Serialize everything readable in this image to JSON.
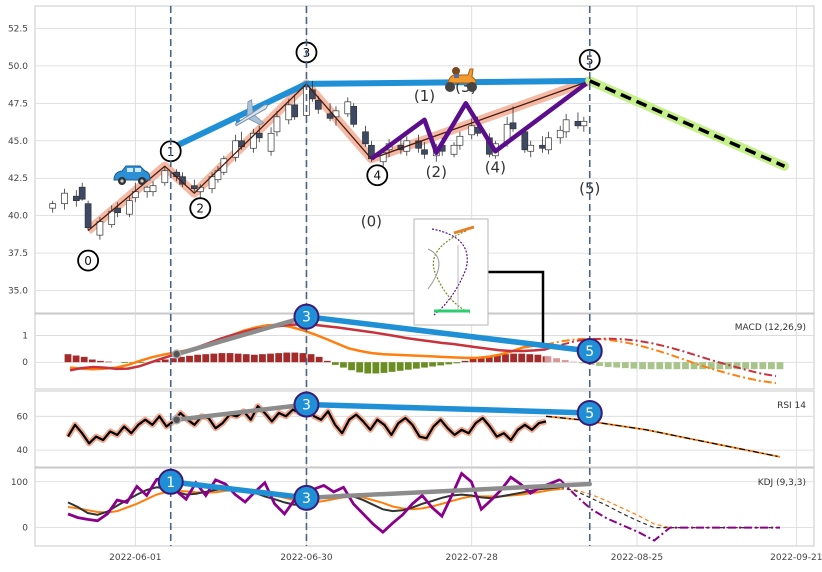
{
  "colors": {
    "panel_border": "#c9c9c9",
    "grid": "#d8d8d8",
    "divergence_blue": "#1f8fd6",
    "trend_gray": "#8c8c8c",
    "wave_salmon": "#f2a98f",
    "wave_purple": "#5b0e8c",
    "projection_green": "#c6f08a",
    "dashed_vline": "#4a6387",
    "macd_line": "#c8323c",
    "signal_line": "#ff7f0e",
    "hist_pos": "#a52a2a",
    "hist_neg": "#6b8e23",
    "rsi_line": "#000000",
    "rsi_glow": "#f2a98f",
    "kdj_k": "#333333",
    "kdj_d": "#ff7f0e",
    "kdj_j": "#8b008b",
    "candle_up": "#ffffff",
    "candle_down": "#3d4a66"
  },
  "icons": [
    "car-icon",
    "airplane-icon",
    "scooter-icon",
    "wave-inset-icon"
  ],
  "chart_data": [
    {
      "type": "candlestick",
      "panel": "price",
      "ylim": [
        33.5,
        54.0
      ],
      "yticks": [
        "35.0",
        "37.5",
        "40.0",
        "42.5",
        "45.0",
        "47.5",
        "50.0",
        "52.5"
      ],
      "xlim": [
        "2022-05-15",
        "2022-09-24"
      ],
      "candles": [
        [
          "2022-05-18",
          40.5,
          41.0,
          40.2,
          40.8
        ],
        [
          "2022-05-20",
          40.8,
          41.8,
          40.4,
          41.5
        ],
        [
          "2022-05-22",
          41.3,
          41.7,
          40.6,
          41.0
        ],
        [
          "2022-05-23",
          41.9,
          42.2,
          41.0,
          41.1
        ],
        [
          "2022-05-24",
          40.8,
          41.0,
          39.0,
          39.2
        ],
        [
          "2022-05-26",
          38.7,
          39.9,
          38.4,
          39.6
        ],
        [
          "2022-05-28",
          39.4,
          40.7,
          39.2,
          40.3
        ],
        [
          "2022-05-29",
          40.5,
          40.9,
          39.9,
          40.2
        ],
        [
          "2022-05-31",
          40.1,
          41.3,
          39.9,
          41.0
        ],
        [
          "2022-06-01",
          41.2,
          42.2,
          40.9,
          41.6
        ],
        [
          "2022-06-03",
          41.6,
          42.0,
          41.2,
          41.9
        ],
        [
          "2022-06-04",
          41.6,
          42.3,
          41.3,
          42.0
        ],
        [
          "2022-06-06",
          42.2,
          43.3,
          42.0,
          43.0
        ],
        [
          "2022-06-08",
          42.9,
          43.1,
          42.3,
          42.6
        ],
        [
          "2022-06-09",
          42.6,
          42.9,
          41.9,
          42.1
        ],
        [
          "2022-06-11",
          42.0,
          42.4,
          41.6,
          41.8
        ],
        [
          "2022-06-12",
          41.6,
          42.1,
          41.2,
          41.9
        ],
        [
          "2022-06-14",
          41.8,
          42.9,
          41.5,
          42.6
        ],
        [
          "2022-06-15",
          42.4,
          43.3,
          42.2,
          43.0
        ],
        [
          "2022-06-16",
          42.9,
          44.0,
          42.7,
          43.8
        ],
        [
          "2022-06-18",
          43.9,
          45.4,
          43.6,
          45.0
        ],
        [
          "2022-06-19",
          45.0,
          45.6,
          44.4,
          44.6
        ],
        [
          "2022-06-21",
          44.5,
          45.8,
          44.2,
          45.5
        ],
        [
          "2022-06-22",
          45.5,
          46.0,
          44.9,
          45.2
        ],
        [
          "2022-06-24",
          44.3,
          45.9,
          44.0,
          45.5
        ],
        [
          "2022-06-25",
          45.6,
          47.0,
          45.3,
          46.6
        ],
        [
          "2022-06-27",
          46.4,
          47.8,
          46.1,
          47.4
        ],
        [
          "2022-06-28",
          47.4,
          48.1,
          46.4,
          46.6
        ],
        [
          "2022-06-30",
          46.7,
          48.9,
          46.5,
          48.6
        ],
        [
          "2022-07-01",
          48.4,
          49.0,
          47.6,
          47.8
        ],
        [
          "2022-07-02",
          47.7,
          48.0,
          46.8,
          47.1
        ],
        [
          "2022-07-04",
          46.8,
          47.5,
          46.3,
          46.5
        ],
        [
          "2022-07-05",
          46.6,
          47.3,
          46.0,
          47.0
        ],
        [
          "2022-07-07",
          46.8,
          47.9,
          46.6,
          47.6
        ],
        [
          "2022-07-08",
          47.3,
          47.5,
          45.9,
          46.1
        ],
        [
          "2022-07-10",
          45.6,
          46.0,
          44.6,
          44.8
        ],
        [
          "2022-07-11",
          44.7,
          45.0,
          43.6,
          43.8
        ],
        [
          "2022-07-13",
          43.6,
          44.4,
          43.3,
          44.2
        ],
        [
          "2022-07-14",
          44.4,
          45.1,
          43.9,
          44.8
        ],
        [
          "2022-07-16",
          44.7,
          45.2,
          44.1,
          44.4
        ],
        [
          "2022-07-17",
          44.3,
          45.3,
          44.0,
          45.0
        ],
        [
          "2022-07-19",
          45.0,
          45.4,
          44.2,
          44.5
        ],
        [
          "2022-07-20",
          44.4,
          44.9,
          43.8,
          44.1
        ],
        [
          "2022-07-22",
          44.0,
          44.8,
          43.6,
          44.6
        ],
        [
          "2022-07-23",
          44.7,
          45.2,
          44.0,
          44.3
        ],
        [
          "2022-07-25",
          44.1,
          44.9,
          43.9,
          44.7
        ],
        [
          "2022-07-26",
          44.7,
          45.6,
          44.4,
          45.3
        ],
        [
          "2022-07-28",
          45.4,
          46.5,
          45.1,
          46.0
        ],
        [
          "2022-07-29",
          45.9,
          46.6,
          45.3,
          45.5
        ],
        [
          "2022-07-31",
          45.2,
          45.5,
          43.9,
          44.1
        ],
        [
          "2022-08-01",
          44.0,
          45.0,
          43.8,
          44.8
        ],
        [
          "2022-08-03",
          44.9,
          46.6,
          44.6,
          46.1
        ],
        [
          "2022-08-04",
          46.2,
          47.3,
          45.6,
          45.8
        ],
        [
          "2022-08-06",
          45.6,
          45.8,
          44.2,
          44.4
        ],
        [
          "2022-08-07",
          44.3,
          45.0,
          43.9,
          44.7
        ],
        [
          "2022-08-09",
          44.7,
          45.3,
          44.2,
          44.5
        ],
        [
          "2022-08-10",
          44.4,
          45.6,
          44.1,
          45.2
        ],
        [
          "2022-08-12",
          45.2,
          46.0,
          44.8,
          45.7
        ],
        [
          "2022-08-13",
          45.6,
          46.8,
          45.2,
          46.4
        ],
        [
          "2022-08-15",
          46.3,
          46.9,
          45.8,
          46.0
        ],
        [
          "2022-08-16",
          46.0,
          46.6,
          45.6,
          46.3
        ]
      ],
      "wave_labels": [
        {
          "label": "0",
          "x": "2022-05-24",
          "y": 37.0,
          "circled": true
        },
        {
          "label": "1",
          "x": "2022-06-07",
          "y": 44.3,
          "circled": true
        },
        {
          "label": "2",
          "x": "2022-06-12",
          "y": 40.5,
          "circled": true
        },
        {
          "label": "3",
          "x": "2022-06-30",
          "y": 50.9,
          "circled": true
        },
        {
          "label": "4",
          "x": "2022-07-12",
          "y": 42.7,
          "circled": true
        },
        {
          "label": "5",
          "x": "2022-08-17",
          "y": 50.4,
          "circled": true
        },
        {
          "label": "(0)",
          "x": "2022-07-11",
          "y": 39.6,
          "circled": false
        },
        {
          "label": "(1)",
          "x": "2022-07-20",
          "y": 48.0,
          "circled": false
        },
        {
          "label": "(2)",
          "x": "2022-07-22",
          "y": 42.9,
          "circled": false
        },
        {
          "label": "(3)",
          "x": "2022-07-27",
          "y": 48.6,
          "circled": false
        },
        {
          "label": "(4)",
          "x": "2022-08-01",
          "y": 43.2,
          "circled": false
        },
        {
          "label": "(5)",
          "x": "2022-08-17",
          "y": 41.8,
          "circled": false
        }
      ],
      "impulse_wave": [
        [
          "2022-05-24",
          39.0
        ],
        [
          "2022-06-06",
          43.3
        ],
        [
          "2022-06-11",
          41.5
        ],
        [
          "2022-06-30",
          48.8
        ],
        [
          "2022-07-11",
          43.8
        ],
        [
          "2022-08-17",
          49.0
        ]
      ],
      "sub_wave": [
        [
          "2022-07-11",
          43.8
        ],
        [
          "2022-07-20",
          46.4
        ],
        [
          "2022-07-22",
          44.2
        ],
        [
          "2022-07-27",
          47.5
        ],
        [
          "2022-08-01",
          44.3
        ],
        [
          "2022-08-17",
          49.0
        ]
      ],
      "trend_lines": [
        {
          "name": "upper-trend-1-3",
          "points": [
            [
              "2022-06-06",
              44.3
            ],
            [
              "2022-06-30",
              48.8
            ]
          ]
        },
        {
          "name": "upper-trend-3-5",
          "points": [
            [
              "2022-06-30",
              48.8
            ],
            [
              "2022-08-17",
              49.0
            ]
          ]
        }
      ],
      "projection": [
        [
          "2022-08-17",
          49.0
        ],
        [
          "2022-09-19",
          43.3
        ]
      ],
      "vlines": [
        "2022-06-07",
        "2022-06-30",
        "2022-08-17"
      ]
    },
    {
      "type": "bar+line",
      "panel": "macd",
      "label": "MACD (12,26,9)",
      "ylim": [
        -1.0,
        1.8
      ],
      "yticks": [
        "0",
        "1"
      ],
      "histogram": [
        0.3,
        0.25,
        0.2,
        0.1,
        0.05,
        0.02,
        0.0,
        -0.03,
        -0.05,
        -0.03,
        0.0,
        0.05,
        0.1,
        0.15,
        0.2,
        0.24,
        0.28,
        0.3,
        0.32,
        0.34,
        0.34,
        0.32,
        0.3,
        0.28,
        0.3,
        0.32,
        0.34,
        0.36,
        0.36,
        0.34,
        0.3,
        0.2,
        0.05,
        -0.1,
        -0.2,
        -0.3,
        -0.38,
        -0.42,
        -0.42,
        -0.4,
        -0.36,
        -0.32,
        -0.28,
        -0.24,
        -0.2,
        -0.16,
        -0.12,
        -0.08,
        -0.04,
        0.05,
        0.12,
        0.18,
        0.24,
        0.28,
        0.3,
        0.32,
        0.32,
        0.3,
        0.28,
        0.22
      ],
      "hist_projection": [
        0.22,
        0.15,
        0.08,
        0.02,
        -0.04,
        -0.1,
        -0.14,
        -0.18,
        -0.2,
        -0.22,
        -0.24,
        -0.26,
        -0.26,
        -0.26,
        -0.26,
        -0.26,
        -0.26,
        -0.26,
        -0.26,
        -0.26,
        -0.26,
        -0.26,
        -0.26,
        -0.26,
        -0.26,
        -0.26,
        -0.26,
        -0.26
      ],
      "macd": [
        -0.3,
        -0.22,
        -0.18,
        -0.2,
        -0.25,
        -0.24,
        -0.15,
        0.0,
        0.15,
        0.28,
        0.42,
        0.56,
        0.72,
        0.88,
        1.02,
        1.14,
        1.24,
        1.3,
        1.35,
        1.4,
        1.42,
        1.4,
        1.35,
        1.3,
        1.24,
        1.18,
        1.12,
        1.05,
        0.98,
        0.9,
        0.84,
        0.78,
        0.72,
        0.68,
        0.62,
        0.56,
        0.5,
        0.45,
        0.42,
        0.42,
        0.44,
        0.48
      ],
      "signal": [
        -0.2,
        -0.24,
        -0.26,
        -0.24,
        -0.2,
        -0.1,
        0.05,
        0.18,
        0.28,
        0.36,
        0.44,
        0.56,
        0.7,
        0.86,
        1.02,
        1.18,
        1.3,
        1.38,
        1.4,
        1.32,
        1.2,
        1.05,
        0.88,
        0.7,
        0.52,
        0.42,
        0.34,
        0.3,
        0.28,
        0.26,
        0.24,
        0.22,
        0.2,
        0.18,
        0.16,
        0.16,
        0.2,
        0.28,
        0.4,
        0.55,
        0.62,
        0.66
      ],
      "macd_projection": [
        0.48,
        0.65,
        0.8,
        0.86,
        0.88,
        0.86,
        0.8,
        0.7,
        0.56,
        0.4,
        0.22,
        0.04,
        -0.12,
        -0.28,
        -0.42,
        -0.52
      ],
      "signal_projection": [
        0.66,
        0.78,
        0.86,
        0.88,
        0.84,
        0.76,
        0.64,
        0.48,
        0.3,
        0.1,
        -0.1,
        -0.28,
        -0.44,
        -0.58,
        -0.7,
        -0.78
      ],
      "divergence_points": [
        {
          "label": "3",
          "x": "2022-06-30",
          "y": 1.7
        },
        {
          "label": "5",
          "x": "2022-08-17",
          "y": 0.42
        }
      ],
      "trend_points": [
        [
          "2022-06-08",
          0.3
        ],
        [
          "2022-06-30",
          1.7
        ]
      ]
    },
    {
      "type": "line",
      "panel": "rsi",
      "label": "RSI 14",
      "ylim": [
        30,
        75
      ],
      "yticks": [
        "40",
        "60"
      ],
      "values": [
        48,
        55,
        50,
        44,
        48,
        46,
        51,
        49,
        54,
        50,
        55,
        58,
        55,
        60,
        54,
        57,
        62,
        58,
        55,
        60,
        59,
        53,
        56,
        61,
        60,
        63,
        58,
        66,
        62,
        57,
        62,
        60,
        64,
        62,
        66,
        60,
        58,
        63,
        55,
        50,
        58,
        61,
        57,
        52,
        58,
        55,
        49,
        56,
        59,
        55,
        48,
        47,
        54,
        58,
        53,
        49,
        52,
        50,
        56,
        59,
        54,
        48,
        50,
        46,
        52,
        55,
        52,
        56,
        57
      ],
      "projection": [
        60,
        58,
        55,
        52,
        48,
        44,
        40,
        36
      ],
      "divergence_points": [
        {
          "label": "3",
          "x": "2022-06-30",
          "y": 67
        },
        {
          "label": "5",
          "x": "2022-08-17",
          "y": 62
        }
      ],
      "trend_points": [
        [
          "2022-06-08",
          58
        ],
        [
          "2022-06-30",
          67
        ]
      ]
    },
    {
      "type": "line",
      "panel": "kdj",
      "label": "KDJ (9,3,3)",
      "ylim": [
        -40,
        130
      ],
      "yticks": [
        "0",
        "100"
      ],
      "k": [
        55,
        45,
        32,
        28,
        35,
        48,
        60,
        72,
        82,
        88,
        85,
        78,
        72,
        74,
        78,
        82,
        86,
        84,
        80,
        76,
        68,
        62,
        55,
        50,
        52,
        60,
        66,
        70,
        72,
        68,
        60,
        50,
        40,
        36,
        38,
        44,
        52,
        58,
        65,
        70,
        72,
        70,
        66,
        64,
        68,
        72,
        76,
        80,
        84,
        86,
        88
      ],
      "d": [
        45,
        42,
        38,
        34,
        33,
        36,
        44,
        52,
        62,
        72,
        78,
        80,
        79,
        77,
        76,
        77,
        80,
        82,
        82,
        80,
        76,
        70,
        65,
        60,
        56,
        55,
        58,
        62,
        66,
        68,
        66,
        60,
        54,
        46,
        42,
        40,
        42,
        46,
        52,
        58,
        64,
        68,
        68,
        68,
        68,
        70,
        72,
        75,
        78,
        82,
        84
      ],
      "j": [
        30,
        22,
        18,
        15,
        30,
        60,
        55,
        90,
        70,
        105,
        110,
        80,
        62,
        98,
        70,
        104,
        95,
        72,
        56,
        78,
        98,
        52,
        30,
        60,
        70,
        84,
        92,
        78,
        88,
        52,
        30,
        8,
        -10,
        10,
        28,
        52,
        70,
        44,
        25,
        70,
        118,
        100,
        40,
        60,
        82,
        110,
        95,
        75,
        88,
        96,
        105
      ],
      "k_projection": [
        88,
        80,
        64,
        48,
        30,
        14,
        0,
        0,
        0,
        0,
        0,
        0,
        0,
        0,
        0
      ],
      "d_projection": [
        84,
        82,
        72,
        58,
        42,
        26,
        8,
        0,
        0,
        0,
        0,
        0,
        0,
        0,
        0
      ],
      "j_projection": [
        105,
        70,
        40,
        20,
        5,
        -10,
        -28,
        0,
        0,
        0,
        0,
        0,
        0,
        0,
        0
      ],
      "divergence_points": [
        {
          "label": "1",
          "x": "2022-06-07",
          "y": 100
        },
        {
          "label": "3",
          "x": "2022-06-30",
          "y": 65
        }
      ],
      "trend_points": [
        [
          "2022-06-30",
          65
        ],
        [
          "2022-08-17",
          95
        ]
      ],
      "xticks": [
        "2022-06-01",
        "2022-06-30",
        "2022-07-28",
        "2022-08-25",
        "2022-09-21"
      ]
    }
  ]
}
